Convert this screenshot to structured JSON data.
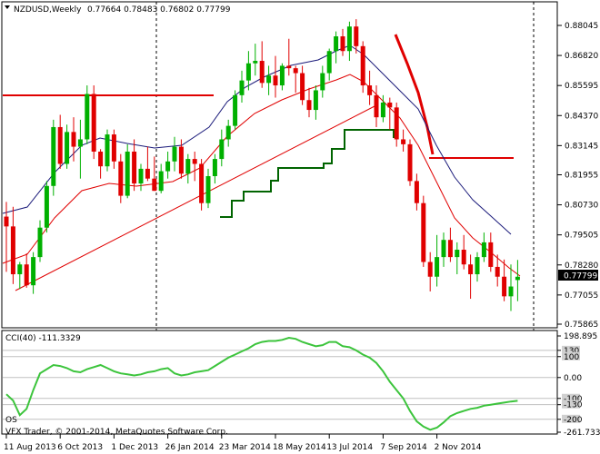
{
  "window": {
    "symbol": "NZDUSD,Weekly",
    "ohlc": "0.77664 0.78483 0.76802 0.77799",
    "price_badge": "0.77799",
    "watermark": "VFX Trader, © 2001-2014, MetaQuotes Software Corp."
  },
  "colors": {
    "bull": "#00b000",
    "bear": "#e00000",
    "ma_fast": "#1a1a7a",
    "ma_slow": "#e00000",
    "ladder": "#006400",
    "cci": "#3cc43c",
    "grid": "#c0c0c0"
  },
  "axis": {
    "price_ticks": [
      "0.88045",
      "0.86820",
      "0.85595",
      "0.84370",
      "0.83145",
      "0.81955",
      "0.80730",
      "0.79505",
      "0.78280",
      "0.77055",
      "0.75865"
    ],
    "cci_ticks": [
      "198.895",
      "130",
      "100",
      "0.00",
      "-100",
      "-130",
      "-200",
      "-261.733"
    ],
    "date_ticks": [
      "11 Aug 2013",
      "6 Oct 2013",
      "1 Dec 2013",
      "26 Jan 2014",
      "23 Mar 2014",
      "18 May 2014",
      "13 Jul 2014",
      "7 Sep 2014",
      "2 Nov 2014"
    ]
  },
  "indicator": {
    "label": "CCI(40) -111.3329",
    "sub_label": "OS"
  },
  "chart_data": [
    {
      "type": "candlestick",
      "title": "NZDUSD,Weekly",
      "timeframe": "Weekly",
      "ylim": [
        0.75865,
        0.88045
      ],
      "x_tick_labels": [
        "11 Aug 2013",
        "6 Oct 2013",
        "1 Dec 2013",
        "26 Jan 2014",
        "23 Mar 2014",
        "18 May 2014",
        "13 Jul 2014",
        "7 Sep 2014",
        "2 Nov 2014"
      ],
      "last_bar": {
        "open": 0.77664,
        "high": 0.78483,
        "low": 0.76802,
        "close": 0.77799
      },
      "candles": [
        {
          "o": 0.8025,
          "h": 0.8085,
          "l": 0.78,
          "c": 0.7985
        },
        {
          "o": 0.7985,
          "h": 0.8065,
          "l": 0.775,
          "c": 0.779
        },
        {
          "o": 0.779,
          "h": 0.784,
          "l": 0.773,
          "c": 0.783
        },
        {
          "o": 0.783,
          "h": 0.7875,
          "l": 0.7735,
          "c": 0.7745
        },
        {
          "o": 0.7745,
          "h": 0.788,
          "l": 0.771,
          "c": 0.786
        },
        {
          "o": 0.786,
          "h": 0.801,
          "l": 0.784,
          "c": 0.798
        },
        {
          "o": 0.798,
          "h": 0.817,
          "l": 0.796,
          "c": 0.815
        },
        {
          "o": 0.815,
          "h": 0.842,
          "l": 0.811,
          "c": 0.839
        },
        {
          "o": 0.839,
          "h": 0.844,
          "l": 0.822,
          "c": 0.824
        },
        {
          "o": 0.824,
          "h": 0.84,
          "l": 0.822,
          "c": 0.837
        },
        {
          "o": 0.837,
          "h": 0.843,
          "l": 0.825,
          "c": 0.831
        },
        {
          "o": 0.831,
          "h": 0.842,
          "l": 0.818,
          "c": 0.834
        },
        {
          "o": 0.834,
          "h": 0.856,
          "l": 0.832,
          "c": 0.8525
        },
        {
          "o": 0.8525,
          "h": 0.856,
          "l": 0.826,
          "c": 0.829
        },
        {
          "o": 0.829,
          "h": 0.83,
          "l": 0.818,
          "c": 0.823
        },
        {
          "o": 0.823,
          "h": 0.838,
          "l": 0.821,
          "c": 0.836
        },
        {
          "o": 0.836,
          "h": 0.838,
          "l": 0.822,
          "c": 0.825
        },
        {
          "o": 0.825,
          "h": 0.828,
          "l": 0.808,
          "c": 0.811
        },
        {
          "o": 0.811,
          "h": 0.832,
          "l": 0.81,
          "c": 0.829
        },
        {
          "o": 0.829,
          "h": 0.834,
          "l": 0.813,
          "c": 0.816
        },
        {
          "o": 0.816,
          "h": 0.824,
          "l": 0.813,
          "c": 0.822
        },
        {
          "o": 0.822,
          "h": 0.831,
          "l": 0.817,
          "c": 0.818
        },
        {
          "o": 0.818,
          "h": 0.827,
          "l": 0.813,
          "c": 0.813
        },
        {
          "o": 0.813,
          "h": 0.824,
          "l": 0.812,
          "c": 0.821
        },
        {
          "o": 0.821,
          "h": 0.829,
          "l": 0.818,
          "c": 0.825
        },
        {
          "o": 0.825,
          "h": 0.835,
          "l": 0.821,
          "c": 0.831
        },
        {
          "o": 0.831,
          "h": 0.834,
          "l": 0.818,
          "c": 0.82
        },
        {
          "o": 0.82,
          "h": 0.828,
          "l": 0.816,
          "c": 0.826
        },
        {
          "o": 0.826,
          "h": 0.829,
          "l": 0.817,
          "c": 0.824
        },
        {
          "o": 0.824,
          "h": 0.826,
          "l": 0.805,
          "c": 0.808
        },
        {
          "o": 0.808,
          "h": 0.822,
          "l": 0.806,
          "c": 0.819
        },
        {
          "o": 0.819,
          "h": 0.828,
          "l": 0.816,
          "c": 0.826
        },
        {
          "o": 0.826,
          "h": 0.838,
          "l": 0.823,
          "c": 0.834
        },
        {
          "o": 0.834,
          "h": 0.842,
          "l": 0.831,
          "c": 0.8395
        },
        {
          "o": 0.8395,
          "h": 0.854,
          "l": 0.838,
          "c": 0.852
        },
        {
          "o": 0.852,
          "h": 0.862,
          "l": 0.849,
          "c": 0.858
        },
        {
          "o": 0.858,
          "h": 0.87,
          "l": 0.854,
          "c": 0.865
        },
        {
          "o": 0.865,
          "h": 0.873,
          "l": 0.86,
          "c": 0.866
        },
        {
          "o": 0.866,
          "h": 0.874,
          "l": 0.855,
          "c": 0.857
        },
        {
          "o": 0.857,
          "h": 0.864,
          "l": 0.852,
          "c": 0.86
        },
        {
          "o": 0.86,
          "h": 0.868,
          "l": 0.851,
          "c": 0.856
        },
        {
          "o": 0.856,
          "h": 0.865,
          "l": 0.854,
          "c": 0.864
        },
        {
          "o": 0.864,
          "h": 0.875,
          "l": 0.86,
          "c": 0.863
        },
        {
          "o": 0.863,
          "h": 0.864,
          "l": 0.853,
          "c": 0.861
        },
        {
          "o": 0.861,
          "h": 0.864,
          "l": 0.848,
          "c": 0.85
        },
        {
          "o": 0.85,
          "h": 0.855,
          "l": 0.843,
          "c": 0.846
        },
        {
          "o": 0.846,
          "h": 0.856,
          "l": 0.842,
          "c": 0.854
        },
        {
          "o": 0.854,
          "h": 0.864,
          "l": 0.851,
          "c": 0.861
        },
        {
          "o": 0.861,
          "h": 0.871,
          "l": 0.858,
          "c": 0.87
        },
        {
          "o": 0.87,
          "h": 0.878,
          "l": 0.865,
          "c": 0.876
        },
        {
          "o": 0.876,
          "h": 0.879,
          "l": 0.868,
          "c": 0.87
        },
        {
          "o": 0.87,
          "h": 0.882,
          "l": 0.866,
          "c": 0.88
        },
        {
          "o": 0.88,
          "h": 0.883,
          "l": 0.869,
          "c": 0.872
        },
        {
          "o": 0.872,
          "h": 0.874,
          "l": 0.853,
          "c": 0.856
        },
        {
          "o": 0.856,
          "h": 0.862,
          "l": 0.848,
          "c": 0.852
        },
        {
          "o": 0.852,
          "h": 0.856,
          "l": 0.839,
          "c": 0.843
        },
        {
          "o": 0.843,
          "h": 0.852,
          "l": 0.841,
          "c": 0.849
        },
        {
          "o": 0.849,
          "h": 0.851,
          "l": 0.838,
          "c": 0.847
        },
        {
          "o": 0.847,
          "h": 0.849,
          "l": 0.831,
          "c": 0.834
        },
        {
          "o": 0.834,
          "h": 0.838,
          "l": 0.829,
          "c": 0.832
        },
        {
          "o": 0.832,
          "h": 0.834,
          "l": 0.815,
          "c": 0.817
        },
        {
          "o": 0.817,
          "h": 0.82,
          "l": 0.805,
          "c": 0.808
        },
        {
          "o": 0.808,
          "h": 0.811,
          "l": 0.782,
          "c": 0.784
        },
        {
          "o": 0.784,
          "h": 0.788,
          "l": 0.772,
          "c": 0.778
        },
        {
          "o": 0.778,
          "h": 0.795,
          "l": 0.774,
          "c": 0.786
        },
        {
          "o": 0.786,
          "h": 0.796,
          "l": 0.782,
          "c": 0.793
        },
        {
          "o": 0.793,
          "h": 0.798,
          "l": 0.784,
          "c": 0.786
        },
        {
          "o": 0.786,
          "h": 0.792,
          "l": 0.779,
          "c": 0.789
        },
        {
          "o": 0.789,
          "h": 0.795,
          "l": 0.781,
          "c": 0.783
        },
        {
          "o": 0.783,
          "h": 0.787,
          "l": 0.769,
          "c": 0.779
        },
        {
          "o": 0.779,
          "h": 0.788,
          "l": 0.776,
          "c": 0.786
        },
        {
          "o": 0.786,
          "h": 0.796,
          "l": 0.784,
          "c": 0.792
        },
        {
          "o": 0.792,
          "h": 0.796,
          "l": 0.78,
          "c": 0.782
        },
        {
          "o": 0.782,
          "h": 0.787,
          "l": 0.774,
          "c": 0.778
        },
        {
          "o": 0.778,
          "h": 0.785,
          "l": 0.768,
          "c": 0.77
        },
        {
          "o": 0.77,
          "h": 0.783,
          "l": 0.764,
          "c": 0.774
        },
        {
          "o": 0.77664,
          "h": 0.78483,
          "l": 0.76802,
          "c": 0.77799
        }
      ]
    },
    {
      "type": "line",
      "title": "CCI(40) -111.3329",
      "ylim": [
        -261.733,
        198.895
      ],
      "levels": [
        130,
        100,
        0,
        -100,
        -130,
        -200
      ],
      "values": [
        -80,
        -110,
        -180,
        -150,
        -60,
        20,
        40,
        60,
        55,
        45,
        30,
        25,
        40,
        50,
        60,
        45,
        30,
        20,
        15,
        10,
        15,
        25,
        30,
        40,
        45,
        20,
        10,
        15,
        25,
        30,
        35,
        55,
        75,
        95,
        110,
        125,
        140,
        160,
        170,
        175,
        175,
        180,
        190,
        185,
        170,
        160,
        150,
        155,
        170,
        170,
        150,
        145,
        130,
        110,
        95,
        70,
        30,
        -20,
        -60,
        -100,
        -160,
        -210,
        -235,
        -250,
        -240,
        -215,
        -185,
        -170,
        -160,
        -150,
        -145,
        -135,
        -130,
        -125,
        -120,
        -115,
        -111.3329
      ]
    }
  ]
}
